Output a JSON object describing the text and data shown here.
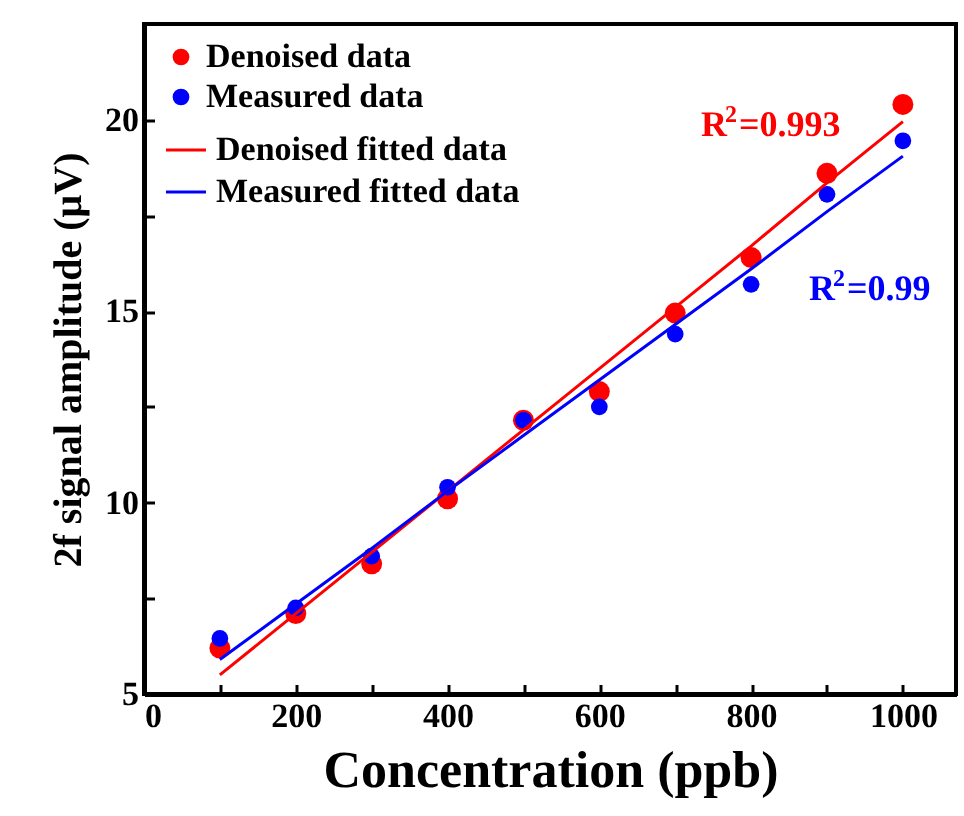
{
  "chart_data": {
    "type": "scatter",
    "xlabel": "Concentration (ppb)",
    "ylabel": "2f signal amplitude (μV)",
    "x": [
      100,
      200,
      300,
      400,
      500,
      600,
      700,
      800,
      900,
      1000
    ],
    "series": [
      {
        "name": "Denoised data",
        "color": "#ff0000",
        "marker": "circle",
        "values": [
          6.2,
          7.1,
          8.4,
          10.1,
          12.15,
          12.9,
          14.95,
          16.4,
          18.6,
          20.4
        ]
      },
      {
        "name": "Measured data",
        "color": "#0000ff",
        "marker": "circle",
        "values": [
          6.45,
          7.25,
          8.6,
          10.4,
          12.15,
          12.5,
          14.4,
          15.7,
          18.05,
          19.45
        ]
      },
      {
        "name": "Denoised fitted data",
        "type": "line",
        "color": "#ff0000",
        "values": [
          5.5,
          7.1,
          8.7,
          10.3,
          11.9,
          13.5,
          15.1,
          16.7,
          18.35,
          19.95
        ]
      },
      {
        "name": "Measured fitted data",
        "type": "line",
        "color": "#0000ff",
        "values": [
          5.9,
          7.35,
          8.8,
          10.3,
          11.75,
          13.2,
          14.65,
          16.1,
          17.6,
          19.05
        ]
      }
    ],
    "annotations": [
      "R$^{2}$=0.993",
      "R$^{2}$=0.99"
    ],
    "xlim": [
      0,
      1070
    ],
    "xticks": [
      0,
      200,
      400,
      600,
      800,
      1000,
      {
        "value": 100,
        "label": null
      },
      {
        "value": 300,
        "label": null
      },
      {
        "value": 500,
        "label": null
      },
      {
        "value": 700,
        "label": null
      },
      {
        "value": 900,
        "label": null
      }
    ],
    "ylim": [
      5,
      22.5
    ],
    "yticks": [
      5,
      10,
      15,
      20,
      {
        "value": 7.5,
        "label": null
      },
      {
        "value": 12.5,
        "label": null
      },
      {
        "value": 17.5,
        "label": null
      }
    ],
    "legend": "top left",
    "line_style": "solid",
    "grid": false
  }
}
